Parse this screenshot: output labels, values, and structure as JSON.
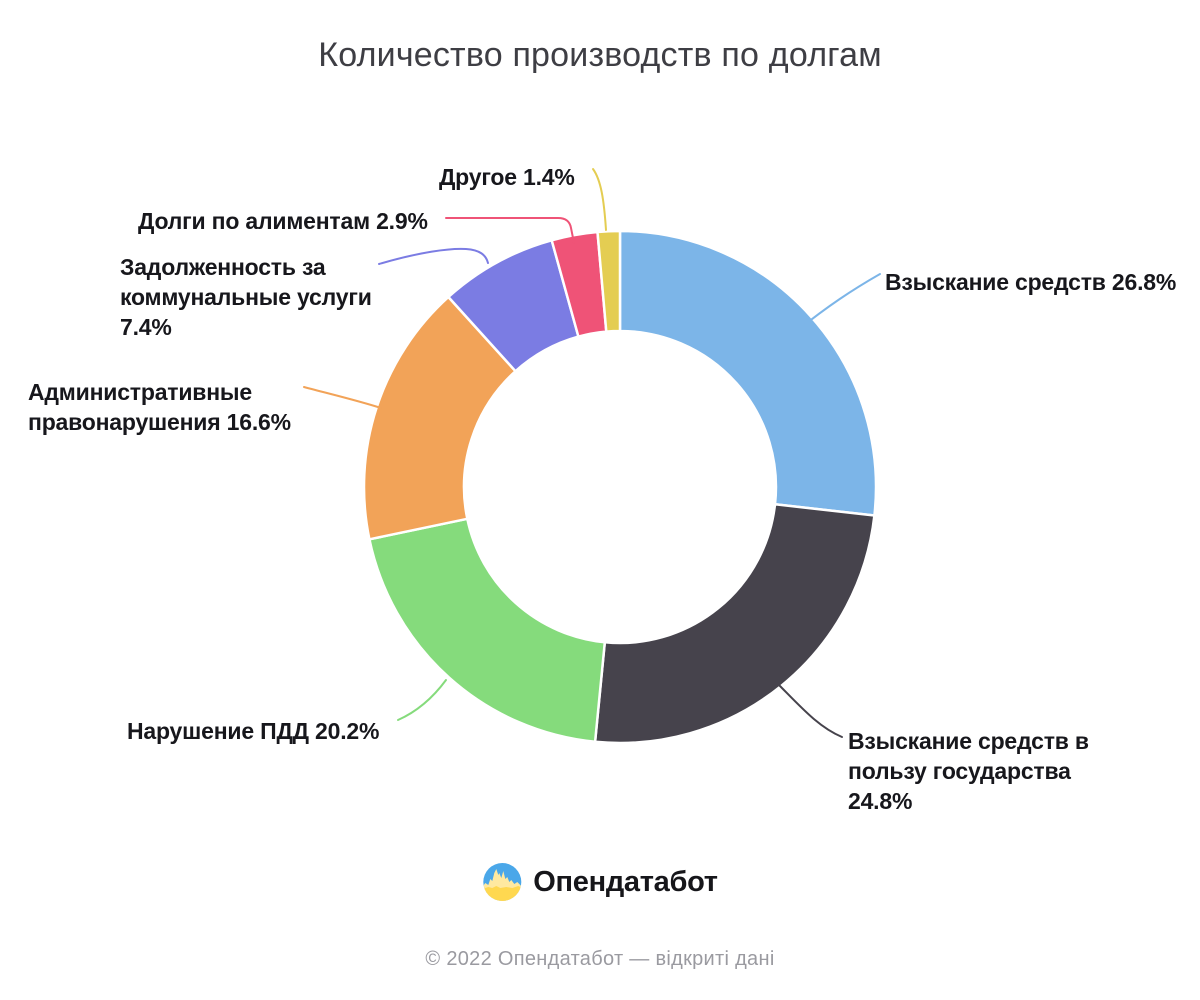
{
  "title": "Количество производств по долгам",
  "chart_data": {
    "type": "pie",
    "subtype": "donut",
    "title": "Количество производств по долгам",
    "unit": "%",
    "start_angle_deg": 0,
    "direction": "clockwise",
    "legend_position": "callouts",
    "segments": [
      {
        "label": "Взыскание средств",
        "value": 26.8,
        "color": "#7CB5E8",
        "callout_lines": [
          "Взыскание средств 26.8%"
        ]
      },
      {
        "label": "Взыскание средств в пользу государства",
        "value": 24.8,
        "color": "#46434C",
        "callout_lines": [
          "Взыскание средств в",
          "пользу государства",
          "24.8%"
        ]
      },
      {
        "label": "Нарушение ПДД",
        "value": 20.2,
        "color": "#85DB7C",
        "callout_lines": [
          "Нарушение ПДД 20.2%"
        ]
      },
      {
        "label": "Административные правонарушения",
        "value": 16.6,
        "color": "#F2A358",
        "callout_lines": [
          "Административные",
          "правонарушения 16.6%"
        ]
      },
      {
        "label": "Задолженность за коммунальные услуги",
        "value": 7.4,
        "color": "#7B7CE3",
        "callout_lines": [
          "Задолженность за",
          "коммунальные услуги",
          "7.4%"
        ]
      },
      {
        "label": "Долги по алиментам",
        "value": 2.9,
        "color": "#EF5377",
        "callout_lines": [
          "Долги по алиментам 2.9%"
        ]
      },
      {
        "label": "Другое",
        "value": 1.4,
        "color": "#E4CD52",
        "callout_lines": [
          "Другое 1.4%"
        ]
      }
    ]
  },
  "footer": {
    "logo_text": "Опендатабот",
    "copyright": "© 2022 Опендатабот — відкриті дані",
    "logo_colors": {
      "blue": "#4AA7E9",
      "yellow": "#FFD850",
      "wave": "#FFE9A0"
    }
  }
}
